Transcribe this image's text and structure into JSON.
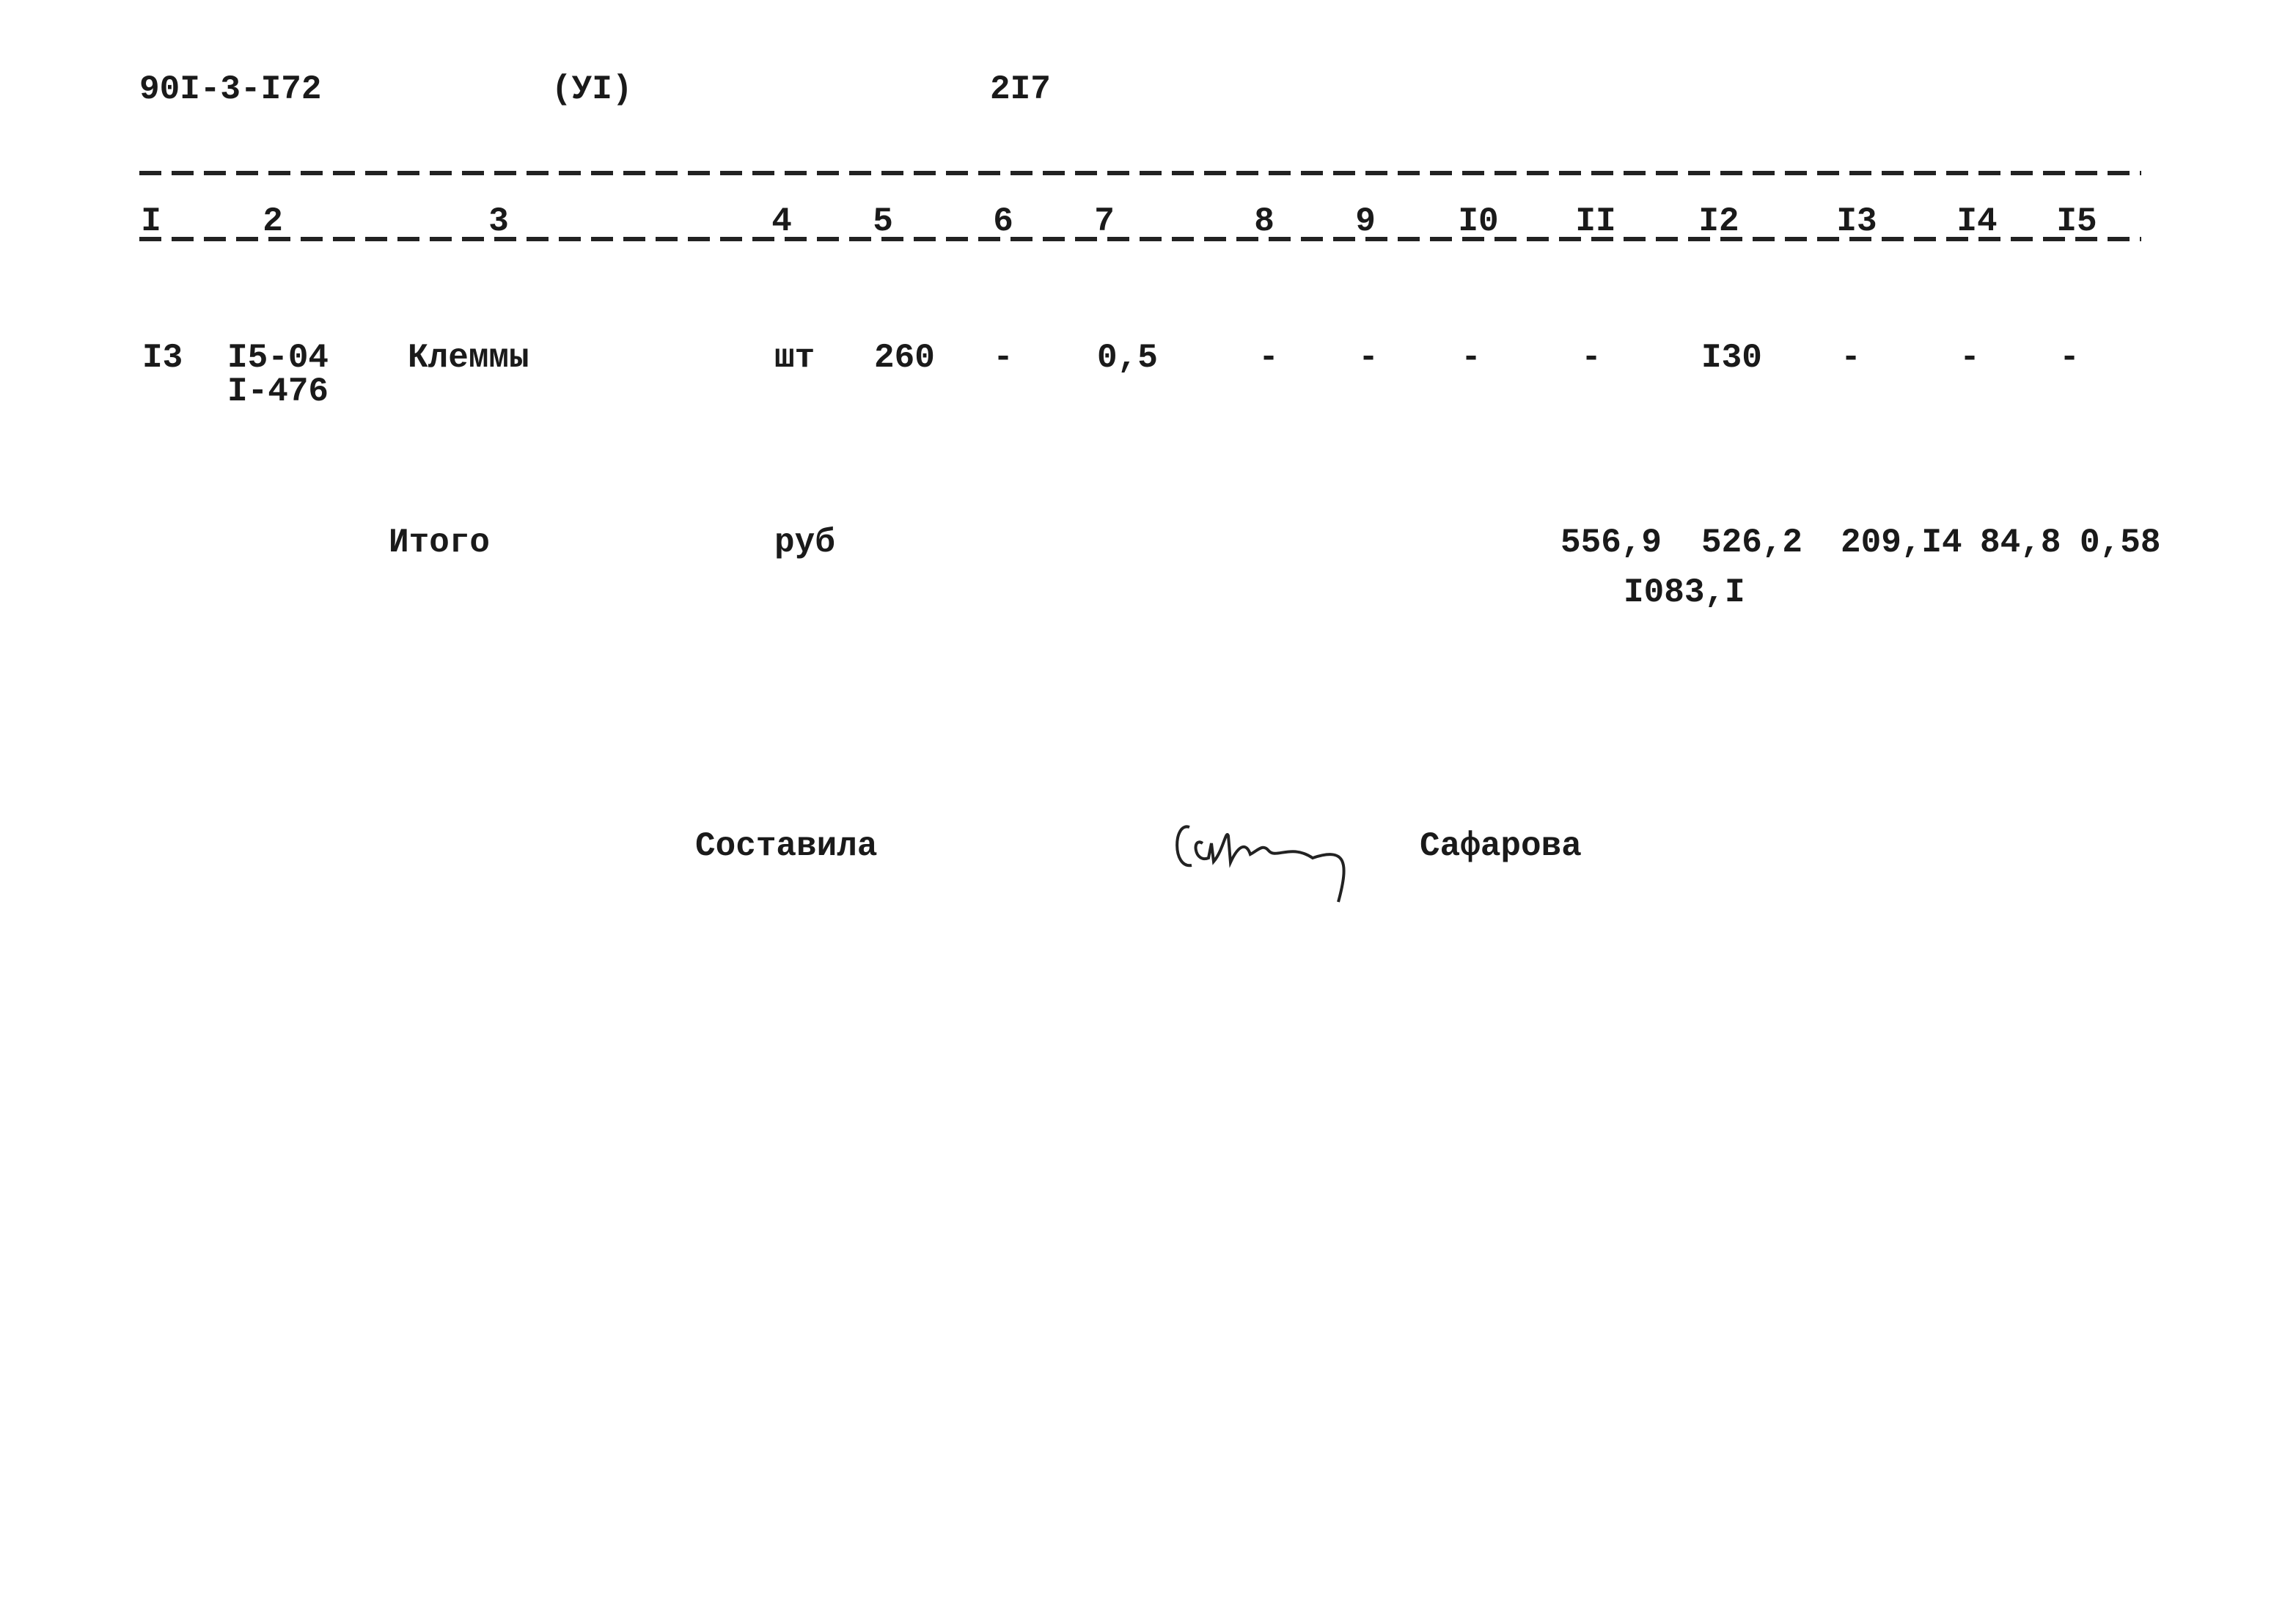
{
  "header": {
    "code": "90I-3-I72",
    "part": "(УI)",
    "page": "2I7"
  },
  "table": {
    "columns": [
      "I",
      "2",
      "3",
      "4",
      "5",
      "6",
      "7",
      "8",
      "9",
      "I0",
      "II",
      "I2",
      "I3",
      "I4",
      "I5"
    ],
    "rows": [
      [
        "I3",
        [
          "I5-04",
          "I-476"
        ],
        "Клеммы",
        "шт",
        "260",
        "-",
        "0,5",
        "-",
        "-",
        "-",
        "-",
        "I30",
        "-",
        "-",
        "-"
      ]
    ]
  },
  "total": {
    "label": "Итого",
    "unit": "руб",
    "values": [
      "556,9",
      "526,2",
      "209,I4",
      "84,8",
      "0,58"
    ],
    "sum": "I083,I"
  },
  "signature": {
    "role": "Составила",
    "name": "Сафарова"
  }
}
